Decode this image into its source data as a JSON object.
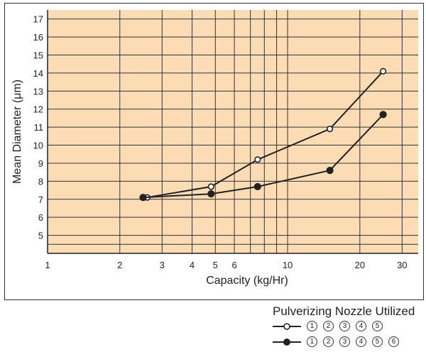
{
  "chart_data": {
    "type": "line",
    "xlabel": "Capacity (kg/Hr)",
    "ylabel": "Mean Diameter (μm)",
    "x_scale": "log",
    "xlim": [
      1,
      35
    ],
    "ylim": [
      4,
      17.5
    ],
    "x_ticks": [
      1,
      2,
      3,
      4,
      5,
      6,
      10,
      20,
      30
    ],
    "y_ticks": [
      5,
      6,
      7,
      8,
      9,
      10,
      11,
      12,
      13,
      14,
      15,
      16,
      17
    ],
    "grid": true,
    "background": "#fbdcb4",
    "line_color": "#222222",
    "series": [
      {
        "marker": "open",
        "x": [
          2.6,
          4.8,
          7.5,
          15,
          25
        ],
        "y": [
          7.1,
          7.7,
          9.2,
          10.9,
          14.1
        ]
      },
      {
        "marker": "filled",
        "x": [
          2.5,
          4.8,
          7.5,
          15,
          25
        ],
        "y": [
          7.1,
          7.3,
          7.7,
          8.6,
          11.7
        ]
      }
    ],
    "legend": {
      "title": "Pulverizing Nozzle Utilized",
      "placement": "bottom-right",
      "rows": [
        {
          "marker": "open",
          "labels": [
            "1",
            "2",
            "3",
            "4",
            "5"
          ]
        },
        {
          "marker": "filled",
          "labels": [
            "1",
            "2",
            "3",
            "4",
            "5",
            "6"
          ]
        }
      ]
    }
  }
}
